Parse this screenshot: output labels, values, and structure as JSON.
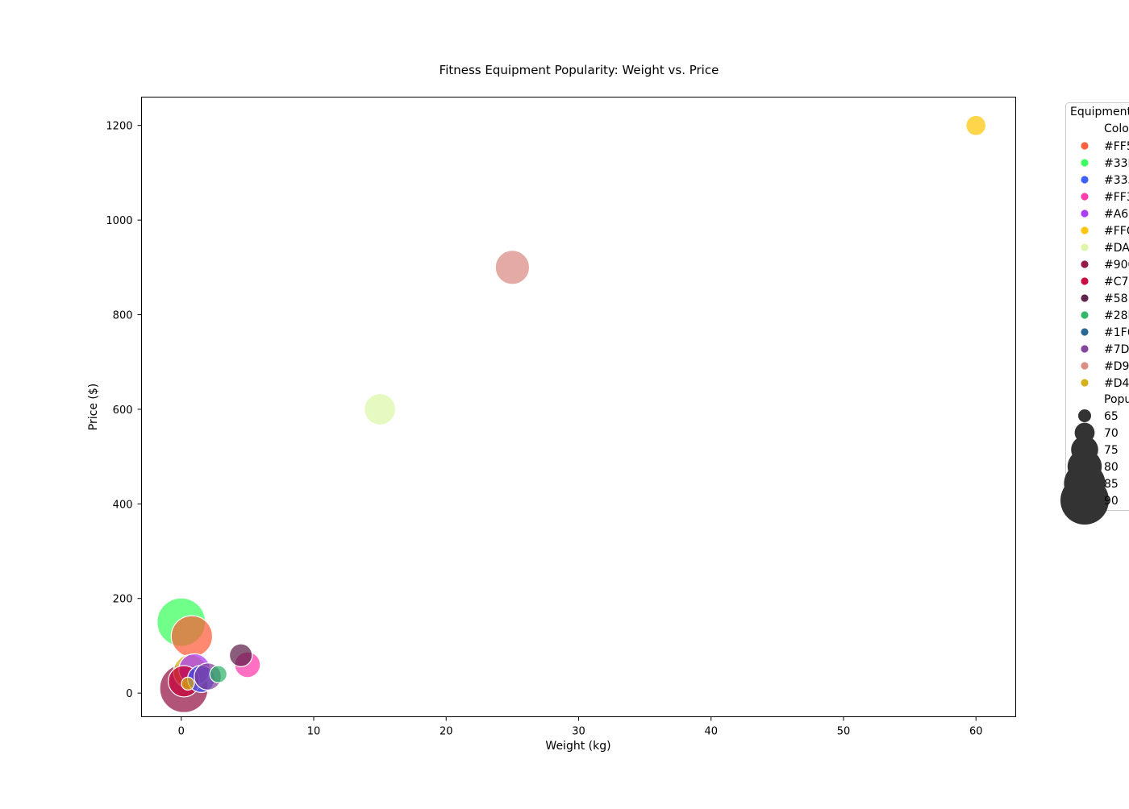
{
  "chart_data": {
    "type": "scatter",
    "title": "Fitness Equipment Popularity: Weight vs. Price",
    "xlabel": "Weight (kg)",
    "ylabel": "Price ($)",
    "xlim": [
      -3,
      63
    ],
    "ylim": [
      -50,
      1260
    ],
    "xticks": [
      0,
      10,
      20,
      30,
      40,
      50,
      60
    ],
    "yticks": [
      0,
      200,
      400,
      600,
      800,
      1000,
      1200
    ],
    "grid": false,
    "marker_alpha": 0.7,
    "points": [
      {
        "x": 0.2,
        "y": 10,
        "size": 90,
        "color": "#900C3F"
      },
      {
        "x": 0.0,
        "y": 150,
        "size": 90,
        "color": "#33FF57"
      },
      {
        "x": 0.8,
        "y": 120,
        "size": 85,
        "color": "#FF5733"
      },
      {
        "x": 25,
        "y": 900,
        "size": 80,
        "color": "#D98880"
      },
      {
        "x": 15,
        "y": 600,
        "size": 78,
        "color": "#DAF7A6"
      },
      {
        "x": 0.7,
        "y": 45,
        "size": 80,
        "color": "#D4AC0D"
      },
      {
        "x": 1.0,
        "y": 50,
        "size": 78,
        "color": "#A633FF"
      },
      {
        "x": 0.2,
        "y": 25,
        "size": 78,
        "color": "#C70039"
      },
      {
        "x": 1.5,
        "y": 30,
        "size": 75,
        "color": "#3357FF"
      },
      {
        "x": 2.0,
        "y": 35,
        "size": 75,
        "color": "#7D3C98"
      },
      {
        "x": 5.0,
        "y": 60,
        "size": 74,
        "color": "#FF33A8"
      },
      {
        "x": 4.5,
        "y": 80,
        "size": 72,
        "color": "#581845"
      },
      {
        "x": 2.8,
        "y": 40,
        "size": 68,
        "color": "#28B463"
      },
      {
        "x": 0.5,
        "y": 20,
        "size": 65,
        "color": "#D4AC0D"
      },
      {
        "x": 60,
        "y": 1200,
        "size": 70,
        "color": "#FFC300"
      }
    ],
    "legend": {
      "placement": "outside right",
      "title": "Equipment",
      "color_header": "Colo",
      "color_entries": [
        {
          "label": "#FF5",
          "color": "#FF5733"
        },
        {
          "label": "#33F",
          "color": "#33FF57"
        },
        {
          "label": "#335",
          "color": "#3357FF"
        },
        {
          "label": "#FF3",
          "color": "#FF33A8"
        },
        {
          "label": "#A63",
          "color": "#A633FF"
        },
        {
          "label": "#FFC",
          "color": "#FFC300"
        },
        {
          "label": "#DA",
          "color": "#DAF7A6"
        },
        {
          "label": "#900",
          "color": "#900C3F"
        },
        {
          "label": "#C70",
          "color": "#C70039"
        },
        {
          "label": "#581",
          "color": "#581845"
        },
        {
          "label": "#28B",
          "color": "#28B463"
        },
        {
          "label": "#1F6",
          "color": "#1F618D"
        },
        {
          "label": "#7D",
          "color": "#7D3C98"
        },
        {
          "label": "#D9",
          "color": "#D98880"
        },
        {
          "label": "#D4",
          "color": "#D4AC0D"
        }
      ],
      "size_header": "Popu",
      "size_entries": [
        {
          "label": "65",
          "size": 65
        },
        {
          "label": "70",
          "size": 70
        },
        {
          "label": "75",
          "size": 75
        },
        {
          "label": "80",
          "size": 80
        },
        {
          "label": "85",
          "size": 85
        },
        {
          "label": "90",
          "size": 90
        }
      ]
    }
  }
}
